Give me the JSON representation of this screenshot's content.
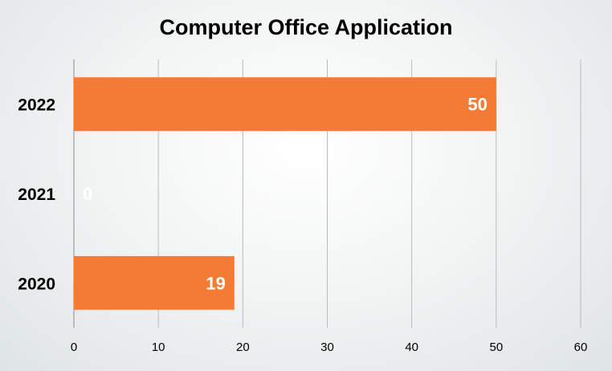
{
  "chart_data": {
    "type": "bar",
    "orientation": "horizontal",
    "title": "Computer Office Application",
    "categories": [
      "2022",
      "2021",
      "2020"
    ],
    "values": [
      50,
      0,
      19
    ],
    "xlim": [
      0,
      60
    ],
    "xticks": [
      "0",
      "10",
      "20",
      "30",
      "40",
      "50",
      "60"
    ],
    "xlabel": "",
    "ylabel": "",
    "grid": true,
    "legend": "none",
    "data_labels": [
      "50",
      "0",
      "19"
    ],
    "colors": {
      "bar": "#F47B35",
      "grid": "#b9bcbc",
      "axis": "#8a8d8d",
      "label": "#ffffff"
    }
  }
}
